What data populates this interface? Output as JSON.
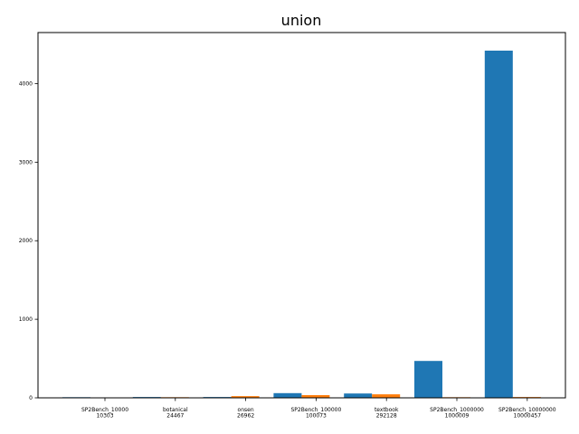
{
  "chart_data": {
    "type": "bar",
    "title": "union",
    "xlabel": "",
    "ylabel": "",
    "categories": [
      [
        "SP2Bench_10000",
        "10303"
      ],
      [
        "botanical",
        "24467"
      ],
      [
        "onsen",
        "26962"
      ],
      [
        "SP2Bench_100000",
        "100073"
      ],
      [
        "textbook",
        "292128"
      ],
      [
        "SP2Bench_1000000",
        "1000009"
      ],
      [
        "SP2Bench_10000000",
        "10000457"
      ]
    ],
    "series": [
      {
        "color": "#1f77b4",
        "values": [
          8,
          10,
          10,
          60,
          55,
          470,
          4420
        ]
      },
      {
        "color": "#ff7f0e",
        "values": [
          6,
          8,
          22,
          35,
          45,
          8,
          10
        ]
      }
    ],
    "ylim": [
      0,
      4650
    ],
    "yticks": [
      0,
      1000,
      2000,
      3000,
      4000
    ],
    "grid": false,
    "legend": "none"
  }
}
